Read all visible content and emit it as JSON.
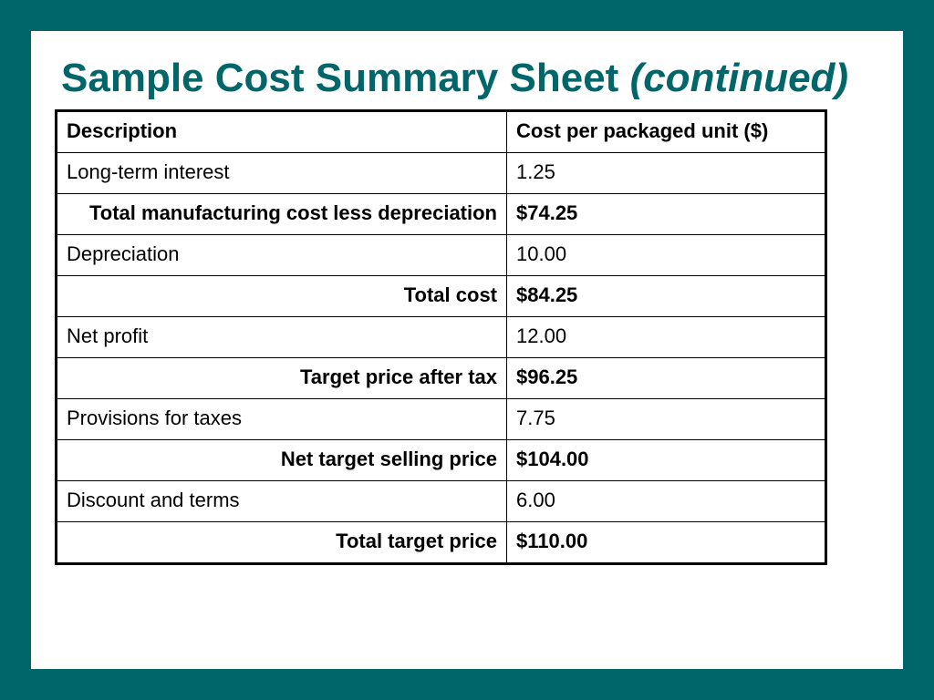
{
  "slide": {
    "title_main": "Sample Cost Summary Sheet",
    "title_italic": "(continued)"
  },
  "table": {
    "headers": {
      "description": "Description",
      "cost": "Cost per packaged unit ($)"
    },
    "rows": [
      {
        "description": "Long-term interest",
        "cost": "1.25"
      },
      {
        "description": "Total manufacturing cost less depreciation",
        "cost": "$74.25"
      },
      {
        "description": "Depreciation",
        "cost": "10.00"
      },
      {
        "description": "Total cost",
        "cost": "$84.25"
      },
      {
        "description": "Net profit",
        "cost": "12.00"
      },
      {
        "description": "Target price after tax",
        "cost": "$96.25"
      },
      {
        "description": "Provisions for taxes",
        "cost": "7.75"
      },
      {
        "description": "Net target selling price",
        "cost": "$104.00"
      },
      {
        "description": "Discount and terms",
        "cost": "6.00"
      },
      {
        "description": "Total target price",
        "cost": "$110.00"
      }
    ]
  },
  "colors": {
    "frame": "#00666a",
    "title": "#00666a",
    "background": "#ffffff",
    "text": "#000000"
  }
}
